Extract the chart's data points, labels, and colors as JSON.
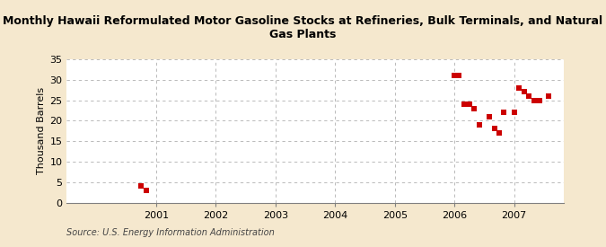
{
  "title": "Monthly Hawaii Reformulated Motor Gasoline Stocks at Refineries, Bulk Terminals, and Natural\nGas Plants",
  "ylabel": "Thousand Barrels",
  "source": "Source: U.S. Energy Information Administration",
  "background_color": "#f5e8ce",
  "plot_background": "#ffffff",
  "marker_color": "#cc0000",
  "marker_size": 18,
  "ylim": [
    0,
    35
  ],
  "yticks": [
    0,
    5,
    10,
    15,
    20,
    25,
    30,
    35
  ],
  "x_points": [
    2000.75,
    2000.83,
    2006.0,
    2006.08,
    2006.17,
    2006.25,
    2006.33,
    2006.42,
    2006.58,
    2006.67,
    2006.75,
    2006.83,
    2007.0,
    2007.08,
    2007.17,
    2007.25,
    2007.33,
    2007.42,
    2007.58
  ],
  "y_points": [
    4,
    3,
    31,
    31,
    24,
    24,
    23,
    19,
    21,
    18,
    17,
    22,
    22,
    28,
    27,
    26,
    25,
    25,
    26
  ],
  "xtick_positions": [
    2001,
    2002,
    2003,
    2004,
    2005,
    2006,
    2007
  ],
  "xtick_labels": [
    "2001",
    "2002",
    "2003",
    "2004",
    "2005",
    "2006",
    "2007"
  ],
  "xlim": [
    1999.5,
    2007.83
  ],
  "title_fontsize": 9,
  "label_fontsize": 8,
  "tick_fontsize": 8,
  "source_fontsize": 7
}
